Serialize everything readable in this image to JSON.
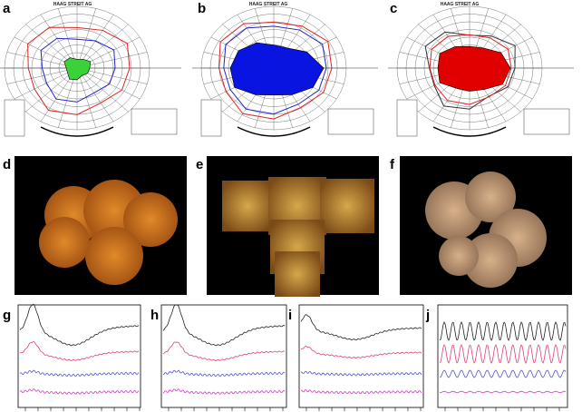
{
  "panels": [
    {
      "label": "a",
      "header": "HAAG STREIT AG"
    },
    {
      "label": "b",
      "header": "HAAG STREIT AG"
    },
    {
      "label": "c",
      "header": "HAAG STREIT AG"
    },
    {
      "label": "d"
    },
    {
      "label": "e"
    },
    {
      "label": "f"
    },
    {
      "label": "g"
    },
    {
      "label": "h"
    },
    {
      "label": "i"
    },
    {
      "label": "j"
    }
  ]
}
